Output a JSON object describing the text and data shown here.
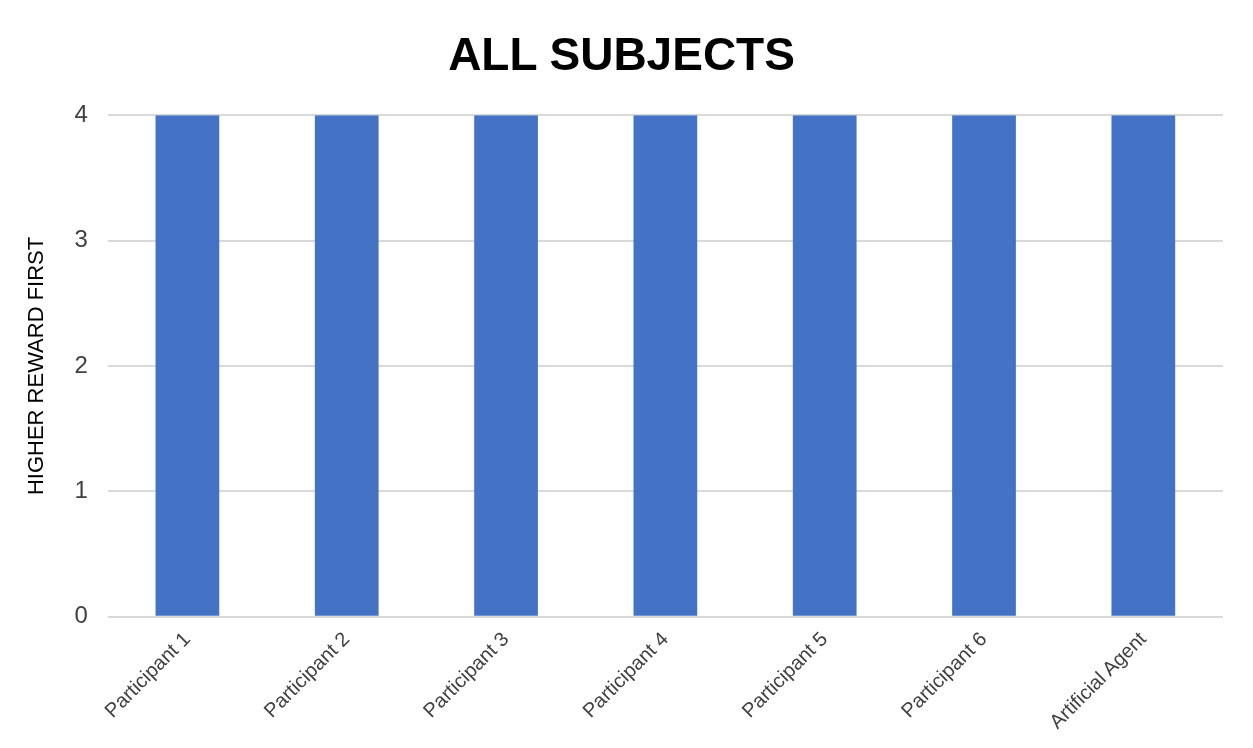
{
  "chart_data": {
    "type": "bar",
    "title": "ALL SUBJECTS",
    "ylabel": "HIGHER REWARD FIRST",
    "categories": [
      "Participant 1",
      "Participant 2",
      "Participant 3",
      "Participant 4",
      "Participant 5",
      "Participant 6",
      "Artificial Agent"
    ],
    "values": [
      4,
      4,
      4,
      4,
      4,
      4,
      4
    ],
    "color": "#4472c4",
    "ylim": [
      0,
      4
    ],
    "yticks": [
      0,
      1,
      2,
      3,
      4
    ],
    "grid": "y"
  }
}
